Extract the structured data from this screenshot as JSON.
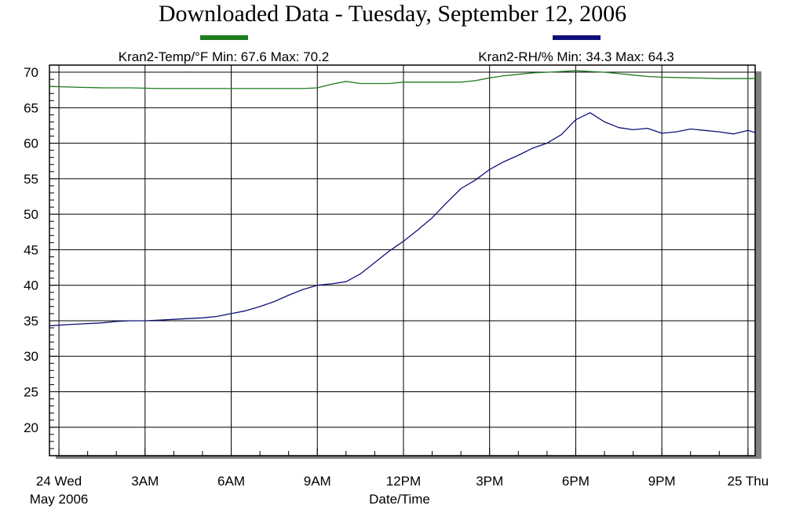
{
  "chart_data": {
    "type": "line",
    "title": "Downloaded Data - Tuesday, September 12, 2006",
    "xlabel": "Date/Time",
    "ylabel": "",
    "ylim": [
      16,
      71
    ],
    "xlim": [
      -0.33,
      24.25
    ],
    "grid": true,
    "legend_placement": "top",
    "y_ticks": [
      20,
      25,
      30,
      35,
      40,
      45,
      50,
      55,
      60,
      65,
      70
    ],
    "x_ticks": [
      {
        "x": 0,
        "label": "24 Wed",
        "sublabel": "May 2006"
      },
      {
        "x": 3,
        "label": "3AM"
      },
      {
        "x": 6,
        "label": "6AM"
      },
      {
        "x": 9,
        "label": "9AM"
      },
      {
        "x": 12,
        "label": "12PM"
      },
      {
        "x": 15,
        "label": "3PM"
      },
      {
        "x": 18,
        "label": "6PM"
      },
      {
        "x": 21,
        "label": "9PM"
      },
      {
        "x": 24,
        "label": "25 Thu"
      }
    ],
    "series": [
      {
        "name": "Kran2-Temp/°F Min: 67.6 Max: 70.2",
        "color": "#1e7b1e",
        "x": [
          -0.33,
          0.5,
          1.5,
          2.5,
          3.5,
          4.5,
          5.5,
          6.5,
          7.5,
          8.5,
          9.0,
          9.5,
          10.0,
          10.5,
          11.5,
          12.0,
          12.5,
          13.5,
          14.0,
          14.5,
          15.0,
          15.5,
          16.0,
          16.5,
          17.0,
          17.5,
          18.0,
          18.5,
          19.0,
          19.5,
          20.0,
          20.5,
          21.0,
          22.0,
          23.0,
          24.25
        ],
        "y": [
          68.0,
          67.9,
          67.8,
          67.8,
          67.7,
          67.7,
          67.7,
          67.7,
          67.7,
          67.7,
          67.8,
          68.3,
          68.7,
          68.4,
          68.4,
          68.6,
          68.6,
          68.6,
          68.6,
          68.8,
          69.2,
          69.5,
          69.7,
          69.9,
          70.0,
          70.1,
          70.2,
          70.1,
          70.0,
          69.8,
          69.6,
          69.4,
          69.3,
          69.2,
          69.1,
          69.1
        ]
      },
      {
        "name": "Kran2-RH/% Min: 34.3 Max: 64.3",
        "color": "#10107a",
        "x": [
          -0.33,
          0.5,
          1.5,
          2.0,
          2.5,
          3.0,
          3.5,
          4.0,
          4.5,
          5.0,
          5.5,
          6.0,
          6.5,
          7.0,
          7.5,
          8.0,
          8.5,
          9.0,
          9.5,
          10.0,
          10.5,
          11.0,
          11.5,
          12.0,
          12.5,
          13.0,
          13.5,
          14.0,
          14.5,
          15.0,
          15.5,
          16.0,
          16.5,
          17.0,
          17.5,
          18.0,
          18.5,
          19.0,
          19.5,
          20.0,
          20.5,
          21.0,
          21.5,
          22.0,
          22.5,
          23.0,
          23.5,
          24.0,
          24.25
        ],
        "y": [
          34.3,
          34.5,
          34.7,
          34.9,
          35.0,
          35.0,
          35.1,
          35.2,
          35.3,
          35.4,
          35.6,
          36.0,
          36.4,
          37.0,
          37.7,
          38.6,
          39.4,
          40.0,
          40.2,
          40.5,
          41.6,
          43.2,
          44.8,
          46.2,
          47.8,
          49.5,
          51.6,
          53.6,
          54.8,
          56.3,
          57.4,
          58.3,
          59.3,
          60.0,
          61.2,
          63.3,
          64.3,
          63.0,
          62.2,
          61.9,
          62.1,
          61.4,
          61.6,
          62.0,
          61.8,
          61.6,
          61.3,
          61.8,
          61.5
        ]
      }
    ]
  }
}
